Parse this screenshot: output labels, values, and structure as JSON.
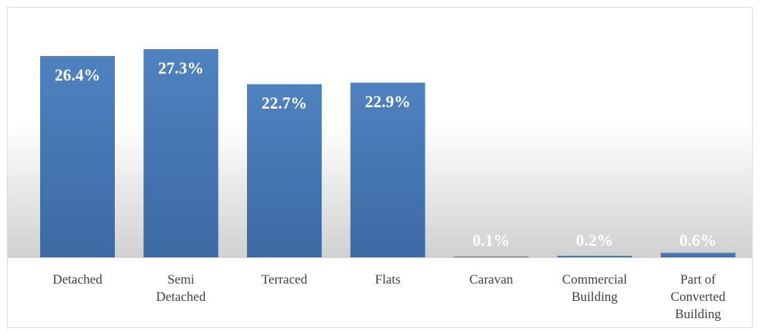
{
  "chart_data": {
    "type": "bar",
    "categories": [
      "Detached",
      "Semi\nDetached",
      "Terraced",
      "Flats",
      "Caravan",
      "Commercial\nBuilding",
      "Part of\nConverted\nBuilding"
    ],
    "values": [
      26.4,
      27.3,
      22.7,
      22.9,
      0.1,
      0.2,
      0.6
    ],
    "value_labels": [
      "26.4%",
      "27.3%",
      "22.7%",
      "22.9%",
      "0.1%",
      "0.2%",
      "0.6%"
    ],
    "color": "#4a7ebb"
  }
}
